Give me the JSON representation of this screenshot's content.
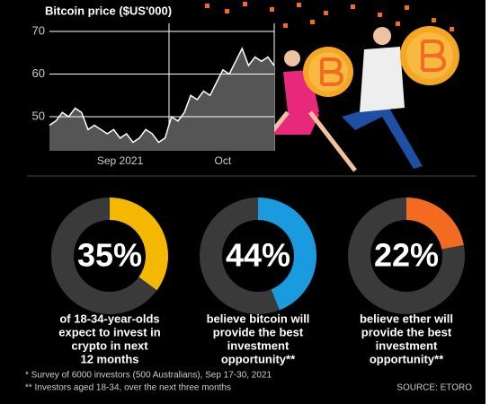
{
  "chart_data": [
    {
      "type": "area",
      "title": "Bitcoin price ($US'000)",
      "categories": [
        null,
        null,
        null,
        null,
        null,
        null,
        null,
        null,
        null,
        null,
        null,
        "Sep 2021",
        null,
        null,
        null,
        null,
        null,
        null,
        null,
        null,
        null,
        null,
        null,
        null,
        null,
        null,
        null,
        "Oct",
        null,
        null,
        null,
        null,
        null,
        null,
        null,
        null
      ],
      "values": [
        48,
        49,
        51,
        50,
        52,
        51,
        47,
        48,
        47,
        46,
        47,
        45,
        46,
        44,
        45,
        47,
        46,
        44,
        45,
        50,
        49,
        51,
        55,
        54,
        56,
        55,
        58,
        61,
        60,
        63,
        66,
        62,
        64,
        63,
        64,
        62
      ],
      "color": "#ffffff",
      "ylim": [
        42,
        72
      ],
      "yticks": [
        50,
        60,
        70
      ],
      "grid": true
    },
    {
      "type": "donut",
      "values": [
        35
      ],
      "value_labels": [
        "35%"
      ],
      "color": "#f5b800",
      "caption": [
        "of 18-34-year-olds",
        "expect to invest in",
        "crypto in next",
        "12 months"
      ]
    },
    {
      "type": "donut",
      "values": [
        44
      ],
      "value_labels": [
        "44%"
      ],
      "color": "#1a9be0",
      "caption": [
        "believe bitcoin will",
        "provide the best",
        "investment",
        "opportunity**"
      ]
    },
    {
      "type": "donut",
      "values": [
        22
      ],
      "value_labels": [
        "22%"
      ],
      "color": "#f26b21",
      "caption": [
        "believe ether will",
        "provide the best",
        "investment",
        "opportunity**"
      ]
    }
  ],
  "footnotes": [
    "* Survey of 6000 investors (500 Australians), Sep 17-30, 2021",
    "** Investors aged 18-34, over the next three months"
  ],
  "source": "SOURCE: ETORO"
}
